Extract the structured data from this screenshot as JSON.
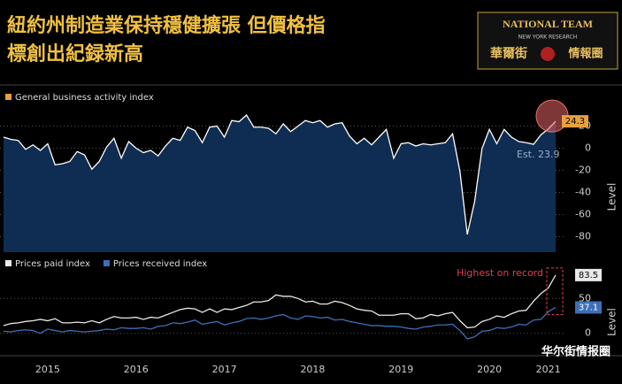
{
  "header": {
    "title_lines": [
      "紐約州制造業保持穩健擴張 但價格指",
      "標創出紀録新高"
    ],
    "logo": {
      "top": "NATIONAL TEAM",
      "sub": "NEW YORK RESEARCH",
      "left": "華爾街",
      "right": "情報圈"
    },
    "watermark": "华尔街情报圈"
  },
  "chart_data": [
    {
      "type": "area",
      "ylabel": "Level",
      "ylim": [
        -94,
        38
      ],
      "yticks": [
        20,
        0,
        -20,
        -40,
        -60,
        -80
      ],
      "grid": true,
      "annotation": "Est. 23.9",
      "series": [
        {
          "name": "General business activity index",
          "color": "#e8a040",
          "line_color": "#ffffff",
          "fill": "#0f2d52",
          "values": [
            10,
            8,
            7,
            -1,
            3,
            -2,
            4,
            -15,
            -14,
            -12,
            -3,
            -6,
            -19,
            -12,
            1,
            9,
            -9,
            6,
            0,
            -4,
            -2,
            -7,
            2,
            9,
            7,
            19,
            16,
            5,
            19,
            20,
            10,
            25,
            24,
            30,
            19,
            19,
            18,
            13,
            22,
            15,
            20,
            25,
            23,
            25,
            19,
            22,
            23,
            11,
            4,
            9,
            3,
            10,
            17,
            -9,
            4,
            5,
            2,
            4,
            3,
            4,
            5,
            13,
            -21,
            -78,
            -48,
            -0.2,
            17,
            4,
            17,
            10,
            6,
            5,
            3.5,
            12.1,
            17.4,
            24.3
          ]
        }
      ]
    },
    {
      "type": "line",
      "ylabel": "Level",
      "ylim": [
        -27,
        110
      ],
      "yticks": [
        0,
        50
      ],
      "grid": true,
      "annotation": "Highest on record",
      "categories": [
        null,
        null,
        null,
        null,
        null,
        null,
        "2015",
        null,
        null,
        null,
        null,
        null,
        null,
        null,
        null,
        null,
        null,
        null,
        "2016",
        null,
        null,
        null,
        null,
        null,
        null,
        null,
        null,
        null,
        null,
        null,
        "2017",
        null,
        null,
        null,
        null,
        null,
        null,
        null,
        null,
        null,
        null,
        null,
        "2018",
        null,
        null,
        null,
        null,
        null,
        null,
        null,
        null,
        null,
        null,
        null,
        "2019",
        null,
        null,
        null,
        null,
        null,
        null,
        null,
        null,
        null,
        null,
        null,
        "2020",
        null,
        null,
        null,
        null,
        null,
        null,
        null,
        "2021",
        null
      ],
      "series": [
        {
          "name": "Prices paid index",
          "color": "#e8e8e8",
          "values": [
            11,
            14,
            15,
            17,
            18,
            20,
            18,
            21,
            15,
            15,
            16,
            15,
            18,
            15,
            20,
            24,
            22,
            22,
            23,
            20,
            23,
            22,
            26,
            30,
            34,
            36,
            35,
            30,
            35,
            30,
            35,
            34,
            37,
            40,
            45,
            45,
            47,
            55,
            53,
            53,
            50,
            45,
            46,
            42,
            42,
            46,
            44,
            40,
            35,
            33,
            32,
            26,
            26,
            26,
            28,
            28,
            21,
            22,
            27,
            25,
            28,
            30,
            18,
            8,
            9,
            17,
            20,
            25,
            23,
            28,
            32,
            33,
            46,
            57,
            65,
            83.5
          ]
        },
        {
          "name": "Prices received index",
          "color": "#3d6fb6",
          "values": [
            3,
            2,
            4,
            5,
            4,
            0,
            6,
            4,
            2,
            4,
            3,
            2,
            3,
            4,
            6,
            5,
            8,
            7,
            7,
            8,
            6,
            10,
            11,
            15,
            14,
            16,
            19,
            13,
            15,
            17,
            12,
            15,
            17,
            21,
            22,
            20,
            22,
            25,
            27,
            22,
            20,
            25,
            24,
            22,
            23,
            19,
            20,
            17,
            15,
            13,
            11,
            11,
            10,
            10,
            9,
            7,
            6,
            9,
            10,
            12,
            12,
            13,
            4,
            -8,
            -5,
            3,
            4,
            8,
            7,
            9,
            13,
            12,
            19,
            20,
            31,
            37.1
          ]
        }
      ]
    }
  ]
}
